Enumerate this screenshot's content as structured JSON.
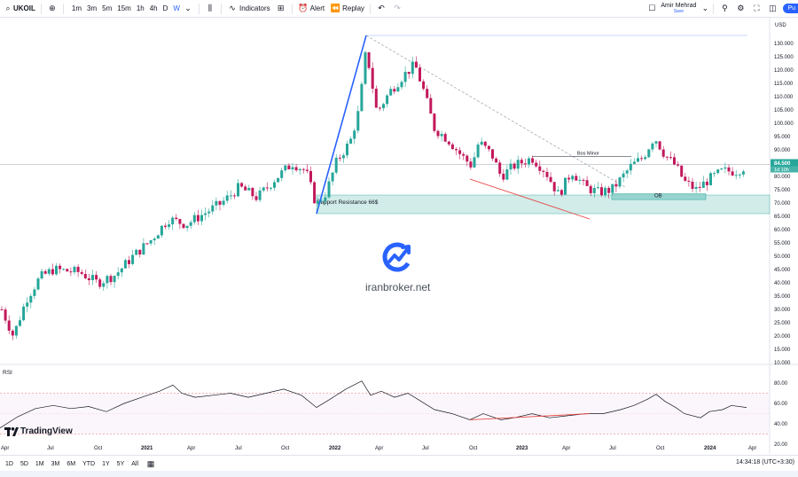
{
  "toolbar": {
    "symbol": "UKOIL",
    "timeframes": [
      "1m",
      "3m",
      "5m",
      "15m",
      "1h",
      "4h",
      "D",
      "W"
    ],
    "active_timeframe": "W",
    "indicators_label": "Indicators",
    "alert_label": "Alert",
    "replay_label": "Replay",
    "user_name": "Amir Mehrad",
    "save_label": "Save",
    "publish_label": "Pu"
  },
  "chart": {
    "currency": "USD",
    "price_labels": [
      "130.000",
      "125.000",
      "120.000",
      "115.000",
      "110.000",
      "105.000",
      "100.000",
      "95.000",
      "90.000",
      "85.000",
      "80.000",
      "75.000",
      "70.000",
      "65.000",
      "60.000",
      "55.000",
      "50.000",
      "45.000",
      "40.000",
      "35.000",
      "30.000",
      "25.000",
      "20.000",
      "15.000",
      "10.000"
    ],
    "last_price": "84.500",
    "countdown": "1d 10h",
    "time_labels": [
      "Apr",
      "Jul",
      "Oct",
      "2021",
      "Apr",
      "Jul",
      "Oct",
      "2022",
      "Apr",
      "Jul",
      "Oct",
      "2023",
      "Apr",
      "Jul",
      "Oct",
      "2024",
      "Apr"
    ],
    "annotations": {
      "support": "Support Resistance 66$",
      "bos": "Bos Minor",
      "ob": "OB"
    },
    "colors": {
      "up": "#26a69a",
      "down": "#c2185b",
      "trend": "#2962ff",
      "zone": "#b2dfdb",
      "ob": "#80cbc4",
      "diverge": "#e53935"
    }
  },
  "rsi": {
    "label": "RSI",
    "levels": [
      "80.00",
      "60.00",
      "40.00",
      "20.00"
    ]
  },
  "branding": {
    "logo_text": "TradingView",
    "watermark": "iranbroker.net"
  },
  "bottom": {
    "ranges": [
      "1D",
      "5D",
      "1M",
      "3M",
      "6M",
      "YTD",
      "1Y",
      "5Y",
      "All"
    ],
    "clock": "14:34:18 (UTC+3:30)"
  }
}
